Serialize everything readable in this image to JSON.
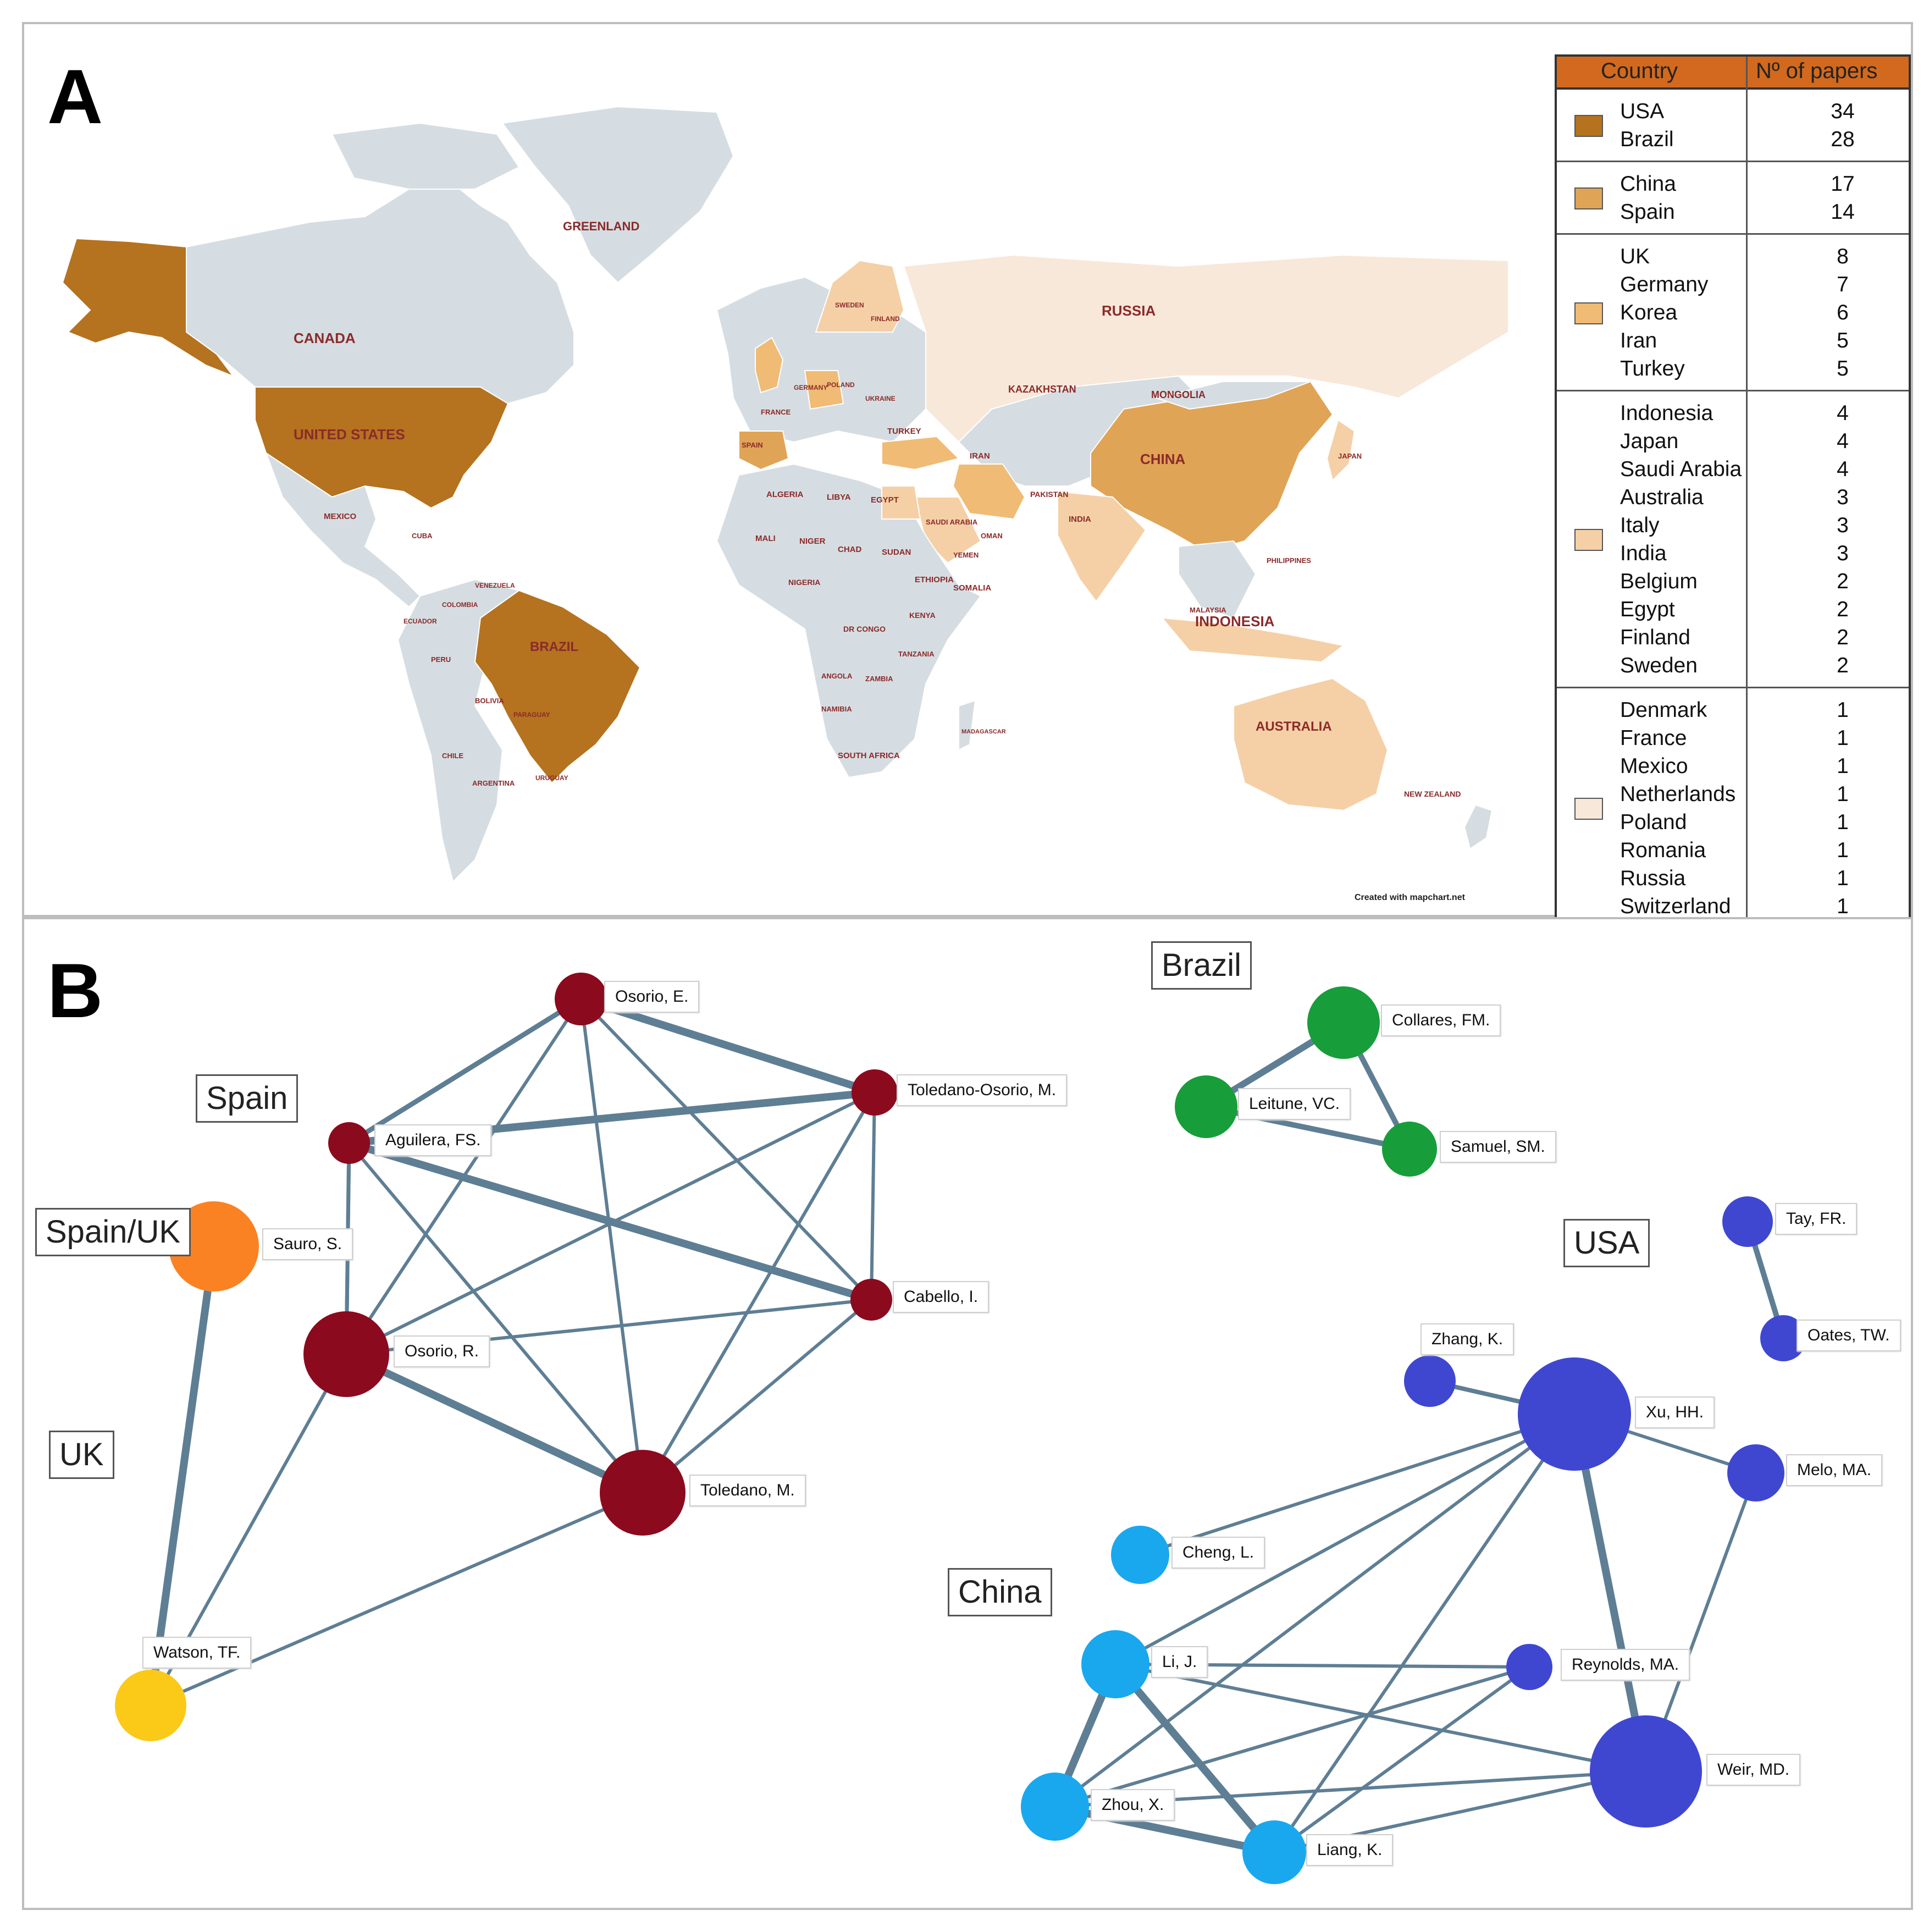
{
  "panel_a": {
    "letter": "A",
    "map_labels": {
      "greenland": "GREENLAND",
      "canada": "CANADA",
      "united_states": "UNITED STATES",
      "russia": "RUSSIA",
      "china": "CHINA",
      "brazil": "BRAZIL",
      "indonesia": "INDONESIA",
      "australia": "AUSTRALIA",
      "kazakhstan": "KAZAKHSTAN",
      "mongolia": "MONGOLIA",
      "turkey": "TURKEY",
      "iran": "IRAN",
      "india": "INDIA",
      "egypt": "EGYPT",
      "algeria": "ALGERIA",
      "libya": "LIBYA",
      "mali": "MALI",
      "niger": "NIGER",
      "chad": "CHAD",
      "sudan": "SUDAN",
      "ethiopia": "ETHIOPIA",
      "somalia": "SOMALIA",
      "nigeria": "NIGERIA",
      "dr_congo": "DR CONGO",
      "kenya": "KENYA",
      "tanzania": "TANZANIA",
      "angola": "ANGOLA",
      "zambia": "ZAMBIA",
      "namibia": "NAMIBIA",
      "south_africa": "SOUTH AFRICA",
      "madagascar": "MADAGASCAR",
      "saudi_arabia": "SAUDI ARABIA",
      "yemen": "YEMEN",
      "oman": "OMAN",
      "pakistan": "PAKISTAN",
      "mexico": "MEXICO",
      "cuba": "CUBA",
      "venezuela": "VENEZUELA",
      "colombia": "COLOMBIA",
      "ecuador": "ECUADOR",
      "peru": "PERU",
      "bolivia": "BOLIVIA",
      "paraguay": "PARAGUAY",
      "chile": "CHILE",
      "argentina": "ARGENTINA",
      "uruguay": "URUGUAY",
      "philippines": "PHILIPPINES",
      "malaysia": "MALAYSIA",
      "japan": "JAPAN",
      "new_zealand": "NEW ZEALAND",
      "spain": "SPAIN",
      "france": "FRANCE",
      "germany": "GERMANY",
      "poland": "POLAND",
      "ukraine": "UKRAINE",
      "finland": "FINLAND",
      "sweden": "SWEDEN"
    },
    "credit": "Created with mapchart.net",
    "legend": {
      "header_country": "Country",
      "header_papers": "Nº of papers",
      "groups": [
        {
          "color": "#b5721f",
          "countries": [
            "USA",
            "Brazil"
          ],
          "counts": [
            "34",
            "28"
          ]
        },
        {
          "color": "#e0a456",
          "countries": [
            "China",
            "Spain"
          ],
          "counts": [
            "17",
            "14"
          ]
        },
        {
          "color": "#f0bb74",
          "countries": [
            "UK",
            "Germany",
            "Korea",
            "Iran",
            "Turkey"
          ],
          "counts": [
            "8",
            "7",
            "6",
            "5",
            "5"
          ]
        },
        {
          "color": "#f5d0a6",
          "countries": [
            "Indonesia",
            "Japan",
            "Saudi Arabia",
            "Australia",
            "Italy",
            "India",
            "Belgium",
            "Egypt",
            "Finland",
            "Sweden"
          ],
          "counts": [
            "4",
            "4",
            "4",
            "3",
            "3",
            "3",
            "2",
            "2",
            "2",
            "2"
          ]
        },
        {
          "color": "#f8e8da",
          "countries": [
            "Denmark",
            "France",
            "Mexico",
            "Netherlands",
            "Poland",
            "Romania",
            "Russia",
            "Switzerland"
          ],
          "counts": [
            "1",
            "1",
            "1",
            "1",
            "1",
            "1",
            "1",
            "1"
          ]
        }
      ]
    },
    "colors": {
      "land": "#d5dde2",
      "border": "#ffffff",
      "label": "#8b2a2a"
    }
  },
  "panel_b": {
    "letter": "B",
    "country_labels": {
      "spain": "Spain",
      "spain_uk": "Spain/UK",
      "uk": "UK",
      "brazil": "Brazil",
      "usa": "USA",
      "china": "China"
    },
    "nodes": [
      {
        "id": "osorio_e",
        "label": "Osorio, E.",
        "group": "spain"
      },
      {
        "id": "toledano_osorio",
        "label": "Toledano-Osorio, M.",
        "group": "spain"
      },
      {
        "id": "aguilera",
        "label": "Aguilera, FS.",
        "group": "spain"
      },
      {
        "id": "cabello",
        "label": "Cabello, I.",
        "group": "spain"
      },
      {
        "id": "osorio_r",
        "label": "Osorio, R.",
        "group": "spain"
      },
      {
        "id": "toledano_m",
        "label": "Toledano, M.",
        "group": "spain"
      },
      {
        "id": "sauro",
        "label": "Sauro, S.",
        "group": "spain_uk"
      },
      {
        "id": "watson",
        "label": "Watson, TF.",
        "group": "uk"
      },
      {
        "id": "collares",
        "label": "Collares, FM.",
        "group": "brazil"
      },
      {
        "id": "leitune",
        "label": "Leitune, VC.",
        "group": "brazil"
      },
      {
        "id": "samuel",
        "label": "Samuel, SM.",
        "group": "brazil"
      },
      {
        "id": "tay",
        "label": "Tay, FR.",
        "group": "usa"
      },
      {
        "id": "oates",
        "label": "Oates, TW.",
        "group": "usa"
      },
      {
        "id": "zhang",
        "label": "Zhang, K.",
        "group": "usa"
      },
      {
        "id": "xu",
        "label": "Xu, HH.",
        "group": "usa"
      },
      {
        "id": "melo",
        "label": "Melo, MA.",
        "group": "usa"
      },
      {
        "id": "reynolds",
        "label": "Reynolds, MA.",
        "group": "usa"
      },
      {
        "id": "weir",
        "label": "Weir, MD.",
        "group": "usa"
      },
      {
        "id": "cheng",
        "label": "Cheng, L.",
        "group": "china"
      },
      {
        "id": "li",
        "label": "Li, J.",
        "group": "china"
      },
      {
        "id": "zhou",
        "label": "Zhou, X.",
        "group": "china"
      },
      {
        "id": "liang",
        "label": "Liang, K.",
        "group": "china"
      }
    ],
    "group_colors": {
      "spain": "#8b0a1e",
      "spain_uk": "#fb8223",
      "uk": "#fbc918",
      "brazil": "#179d3a",
      "usa": "#3f47d1",
      "china": "#19a8ee"
    },
    "edge_color": "#5e7e94"
  }
}
